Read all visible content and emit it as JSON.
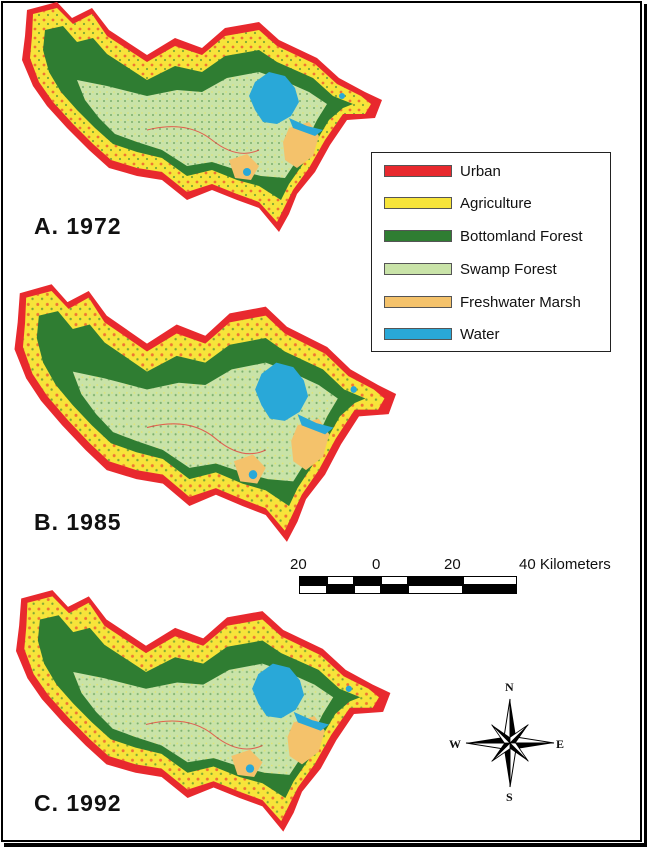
{
  "panels": [
    {
      "id": "A",
      "label": "A. 1972"
    },
    {
      "id": "B",
      "label": "B. 1985"
    },
    {
      "id": "C",
      "label": "C. 1992"
    }
  ],
  "legend": {
    "items": [
      {
        "label": "Urban",
        "color": "#e8292e"
      },
      {
        "label": "Agriculture",
        "color": "#f7e43a"
      },
      {
        "label": "Bottomland Forest",
        "color": "#2f7d32"
      },
      {
        "label": "Swamp Forest",
        "color": "#c9e3a8"
      },
      {
        "label": "Freshwater Marsh",
        "color": "#f4c26b"
      },
      {
        "label": "Water",
        "color": "#29a8d8"
      }
    ]
  },
  "scale_bar": {
    "ticks": [
      "20",
      "0",
      "20",
      "40 Kilometers"
    ]
  },
  "compass": {
    "north": "N",
    "south": "S",
    "east": "E",
    "west": "W"
  }
}
